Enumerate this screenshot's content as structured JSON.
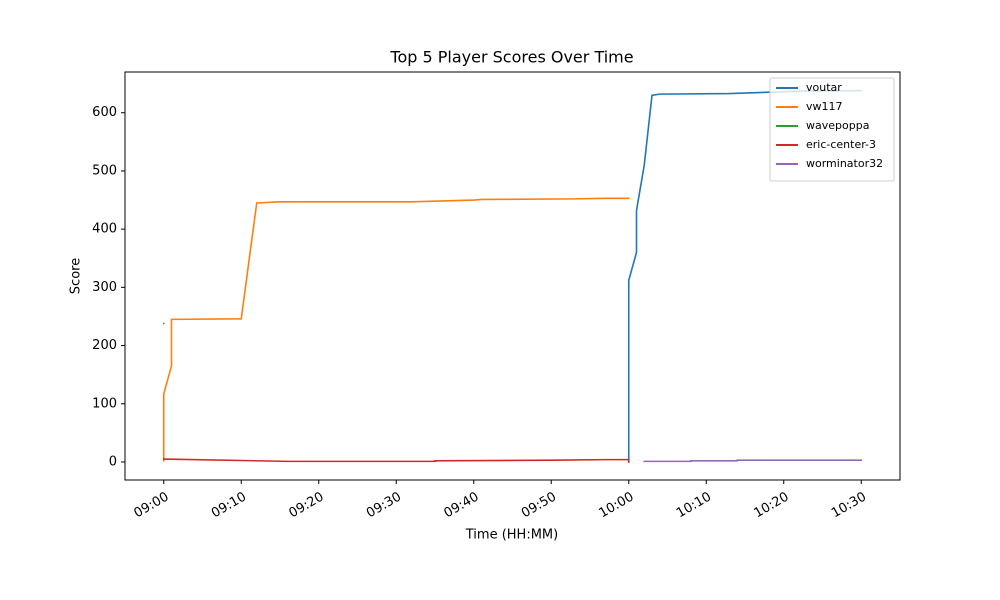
{
  "chart_data": {
    "type": "line",
    "title": "Top 5 Player Scores Over Time",
    "x_label": "Time (HH:MM)",
    "y_label": "Score",
    "xlim": [
      "08:55",
      "10:35"
    ],
    "xticks": [
      "09:00",
      "09:10",
      "09:20",
      "09:30",
      "09:40",
      "09:50",
      "10:00",
      "10:10",
      "10:20",
      "10:30"
    ],
    "ylim": [
      -31,
      670
    ],
    "yticks": [
      0,
      100,
      200,
      300,
      400,
      500,
      600
    ],
    "legend": "upper right",
    "grid": false,
    "series": [
      {
        "name": "voutar",
        "color": "#1f77b4",
        "x": [
          "10:00",
          "10:00",
          "10:00",
          "10:00",
          "10:01",
          "10:01",
          "10:02",
          "10:03",
          "10:04",
          "10:13",
          "10:22",
          "10:30"
        ],
        "values": [
          0,
          168,
          310,
          312,
          360,
          432,
          510,
          630,
          632,
          633,
          637,
          638
        ]
      },
      {
        "name": "vw117",
        "color": "#ff7f0e",
        "x": [
          "09:00",
          "09:00",
          "09:01",
          "09:01",
          "09:10",
          "09:12",
          "09:15",
          "09:32",
          "09:40",
          "09:41",
          "09:53",
          "09:57",
          "10:00"
        ],
        "values": [
          2,
          117,
          165,
          245,
          246,
          445,
          447,
          447,
          450,
          451,
          452,
          453,
          453
        ]
      },
      {
        "name": "wavepoppa",
        "color": "#2ca02c",
        "x": [
          "09:00",
          "09:00"
        ],
        "values": [
          238,
          238
        ]
      },
      {
        "name": "eric-center-3",
        "color": "#d62728",
        "x": [
          "09:00",
          "09:16",
          "09:35",
          "09:35",
          "09:50",
          "09:57",
          "10:00",
          "10:00"
        ],
        "values": [
          5,
          1,
          1,
          2,
          3,
          4,
          4,
          0
        ]
      },
      {
        "name": "worminator32",
        "color": "#9467bd",
        "x": [
          "10:02",
          "10:08",
          "10:08",
          "10:14",
          "10:14",
          "10:30"
        ],
        "values": [
          1,
          1,
          2,
          2,
          3,
          3
        ]
      }
    ]
  }
}
